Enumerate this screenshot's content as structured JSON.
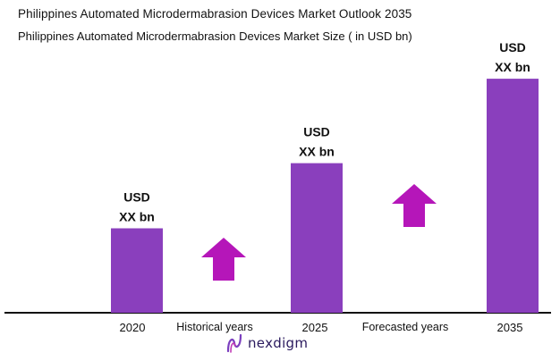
{
  "header": {
    "title": "Philippines Automated Microdermabrasion Devices Market Outlook 2035",
    "subtitle": "Philippines Automated Microdermabrasion Devices Market Size  ( in USD bn)"
  },
  "brand": {
    "name": "nexdigm"
  },
  "colors": {
    "bar": "#8a3fbd",
    "arrow": "#b516b9",
    "axis": "#111111"
  },
  "chart_data": {
    "type": "bar",
    "categories": [
      "2020",
      "2025",
      "2035"
    ],
    "values": [
      35,
      62,
      97
    ],
    "value_labels": [
      [
        "USD",
        "XX bn"
      ],
      [
        "USD",
        "XX bn"
      ],
      [
        "USD",
        "XX bn"
      ]
    ],
    "period_labels": [
      "Historical years",
      "Forecasted years"
    ],
    "ylim": [
      0,
      100
    ],
    "grid": false,
    "legend": "none"
  }
}
